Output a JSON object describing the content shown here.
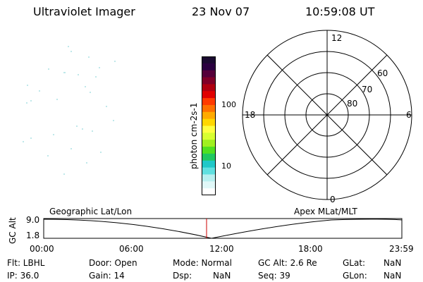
{
  "header": {
    "title": "Ultraviolet Imager",
    "date": "23 Nov 07",
    "time": "10:59:08 UT"
  },
  "colorbar": {
    "label": "photon cm-2s-1",
    "ticks": [
      "100",
      "10"
    ],
    "colors": [
      "#1a0a30",
      "#2a0040",
      "#55003a",
      "#800028",
      "#b00010",
      "#e00000",
      "#ff3a00",
      "#ff7000",
      "#ffaa00",
      "#ffd700",
      "#ffff40",
      "#d8ff30",
      "#a0f020",
      "#50e020",
      "#20c860",
      "#20c8c8",
      "#60e0e0",
      "#b8f0f0",
      "#e0f8f8",
      "#ffffff"
    ]
  },
  "polar_plot": {
    "mlt_labels": [
      "12",
      "6",
      "0",
      "18"
    ],
    "lat_labels": [
      "60",
      "70",
      "80"
    ]
  },
  "ephemeris": {
    "left_label": "Geographic Lat/Lon",
    "right_label": "Apex MLat/MLT",
    "y_title": "GC Alt",
    "y_ticks": [
      "9.0",
      "1.8"
    ],
    "time_ticks": [
      "00:00",
      "06:00",
      "12:00",
      "18:00",
      "23:59"
    ],
    "current_time_marker": "10:59"
  },
  "info": {
    "flt": "Flt: LBHL",
    "ip": "IP: 36.0",
    "door": "Door: Open",
    "gain": "Gain: 14",
    "mode": "Mode: Normal",
    "dsp": "Dsp:",
    "dsp_val": "NaN",
    "gc_alt": "GC Alt: 2.6 Re",
    "seq": "Seq: 39",
    "glat": "GLat:",
    "glat_val": "NaN",
    "glon": "GLon:",
    "glon_val": "NaN"
  }
}
